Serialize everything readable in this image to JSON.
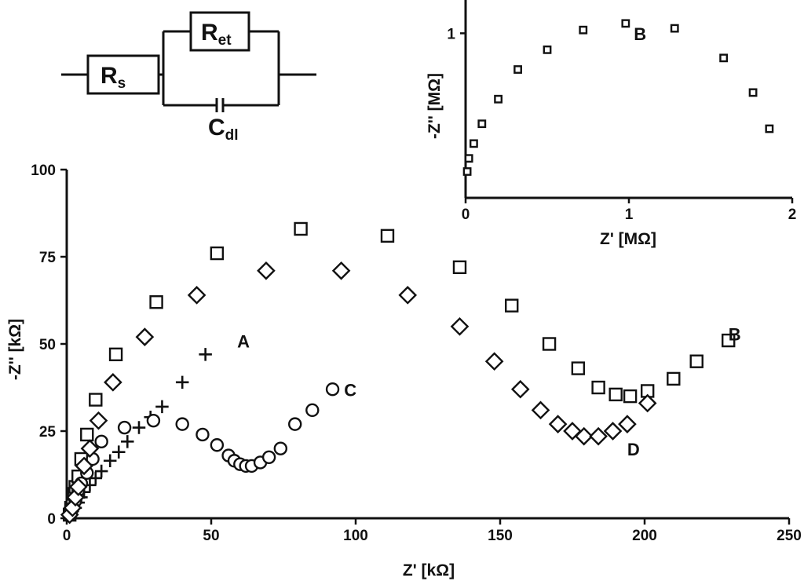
{
  "circuit": {
    "rs_main": "R",
    "rs_sub": "s",
    "ret_main": "R",
    "ret_sub": "et",
    "cdl_main": "C",
    "cdl_sub": "dl"
  },
  "chart_data": [
    {
      "type": "scatter",
      "panel": "main",
      "xlabel": "Z' [kΩ]",
      "ylabel": "-Z'' [kΩ]",
      "xlim": [
        0,
        250
      ],
      "ylim": [
        0,
        100
      ],
      "xticks": [
        0,
        50,
        100,
        150,
        200,
        250
      ],
      "yticks": [
        0,
        25,
        50,
        75,
        100
      ],
      "grid": false,
      "series": [
        {
          "name": "A",
          "marker": "plus",
          "label_at": [
            59,
            49
          ],
          "x": [
            1,
            2,
            3,
            4,
            5,
            6,
            8,
            10,
            12,
            15,
            18,
            21,
            25,
            29,
            33,
            40,
            48
          ],
          "y": [
            1,
            2,
            3,
            4.5,
            6,
            7.5,
            9.5,
            11.5,
            13.5,
            16.5,
            19,
            22,
            26,
            29,
            32,
            39,
            47
          ]
        },
        {
          "name": "B",
          "marker": "square",
          "label_at": [
            229,
            51
          ],
          "x": [
            1,
            1.5,
            2,
            2.5,
            3,
            4,
            5,
            7,
            10,
            17,
            31,
            52,
            81,
            111,
            136,
            154,
            167,
            177,
            184,
            190,
            195,
            201,
            210,
            218,
            229
          ],
          "y": [
            1,
            3,
            5,
            7,
            9,
            12,
            17,
            24,
            34,
            47,
            62,
            76,
            83,
            81,
            72,
            61,
            50,
            43,
            37.5,
            35.5,
            35,
            36.5,
            40,
            45,
            51
          ]
        },
        {
          "name": "C",
          "marker": "circle",
          "label_at": [
            96,
            35
          ],
          "x": [
            1,
            2,
            3,
            4,
            5,
            7,
            9,
            12,
            20,
            30,
            40,
            47,
            52,
            56,
            58,
            60,
            62,
            64,
            67,
            70,
            74,
            79,
            85,
            92
          ],
          "y": [
            1,
            3,
            5,
            8,
            10,
            13,
            17,
            22,
            26,
            28,
            27,
            24,
            21,
            18,
            16.5,
            15.5,
            15,
            15,
            16,
            17.5,
            20,
            27,
            31,
            37
          ]
        },
        {
          "name": "D",
          "marker": "diamond",
          "label_at": [
            194,
            18
          ],
          "x": [
            1,
            2,
            3,
            4,
            6,
            8,
            11,
            16,
            27,
            45,
            69,
            95,
            118,
            136,
            148,
            157,
            164,
            170,
            175,
            179,
            184,
            189,
            194,
            201
          ],
          "y": [
            1,
            3,
            6,
            9,
            15,
            20,
            28,
            39,
            52,
            64,
            71,
            71,
            64,
            55,
            45,
            37,
            31,
            27,
            25,
            23.5,
            23.5,
            25,
            27,
            33
          ]
        }
      ]
    },
    {
      "type": "scatter",
      "panel": "inset",
      "xlabel": "Z' [MΩ]",
      "ylabel": "-Z'' [MΩ]",
      "xlim": [
        0,
        2
      ],
      "ylim": [
        0,
        1.25
      ],
      "xticks": [
        0,
        1,
        2
      ],
      "yticks": [
        1
      ],
      "grid": false,
      "series": [
        {
          "name": "B",
          "marker": "square",
          "label_at": [
            1.03,
            0.96
          ],
          "x": [
            0.01,
            0.02,
            0.05,
            0.1,
            0.2,
            0.32,
            0.5,
            0.72,
            0.98,
            1.28,
            1.58,
            1.76,
            1.86
          ],
          "y": [
            0.16,
            0.24,
            0.33,
            0.45,
            0.6,
            0.78,
            0.9,
            1.02,
            1.06,
            1.03,
            0.85,
            0.64,
            0.42
          ]
        }
      ]
    }
  ]
}
